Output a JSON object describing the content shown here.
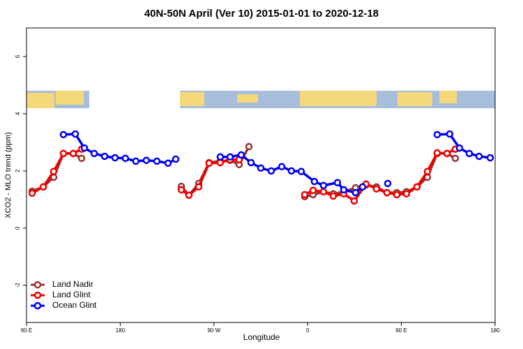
{
  "chart_data": {
    "type": "line",
    "title": "40N-50N April (Ver 10)   2015-01-01 to 2020-12-18",
    "x_label": "Longitude",
    "y_label": "XCO2 - MLO trend (ppm)",
    "xlim": [
      90,
      540
    ],
    "ylim": [
      -3.3,
      7
    ],
    "xticks": [
      {
        "value": 90,
        "label": "90 E"
      },
      180,
      {
        "value": 270,
        "label": "90 W"
      },
      {
        "value": 360,
        "label": "0"
      },
      {
        "value": 450,
        "label": "90 E"
      },
      {
        "value": 540,
        "label": "180"
      }
    ],
    "yticks": [
      -2,
      0,
      2,
      4,
      6
    ],
    "legend": "bottom-left",
    "series": [
      {
        "name": "Land Nadir",
        "color": "#993333",
        "x": [
          95.4,
          106.1,
          116.1,
          125.5,
          134.9,
          142.9,
          null,
          238.7,
          246,
          255.4,
          265.4,
          276.1,
          285.5,
          294.2,
          303.6,
          null,
          357.2,
          365.2,
          375.2,
          384.6,
          394.7,
          406,
          416.1,
          426.1,
          436.2,
          445.6,
          454.9,
          465,
          475,
          484.4,
          493.8,
          501.8
        ],
        "values": [
          1.29,
          1.44,
          1.78,
          2.61,
          2.61,
          2.44,
          null,
          1.46,
          1.15,
          1.56,
          2.29,
          2.34,
          2.37,
          2.22,
          2.85,
          null,
          1.1,
          1.17,
          1.27,
          1.2,
          1.27,
          1.41,
          1.51,
          1.44,
          1.24,
          1.24,
          1.27,
          1.44,
          1.78,
          2.61,
          2.61,
          2.44
        ]
      },
      {
        "name": "Land Glint",
        "color": "#ee0000",
        "x": [
          95.4,
          106.1,
          116.1,
          125.5,
          134.9,
          142.9,
          null,
          238.7,
          246,
          255.4,
          265.4,
          276.1,
          285.5,
          294.2,
          null,
          357.2,
          365.2,
          375.2,
          384.6,
          394.7,
          404.7,
          416.1,
          426.1,
          436.2,
          445.6,
          454.9,
          465,
          475,
          484.4,
          493.8,
          501.8
        ],
        "values": [
          1.22,
          1.44,
          1.98,
          2.61,
          2.61,
          2.76,
          null,
          1.34,
          1.15,
          1.44,
          2.27,
          2.29,
          2.39,
          2.39,
          null,
          1.17,
          1.32,
          1.27,
          1.12,
          1.2,
          0.95,
          1.54,
          1.37,
          1.24,
          1.17,
          1.2,
          1.44,
          1.98,
          2.63,
          2.61,
          2.76
        ]
      },
      {
        "name": "Ocean Glint",
        "color": "#0000ee",
        "x": [
          125.5,
          136.9,
          145.6,
          155,
          165,
          175,
          185,
          195,
          205.1,
          215.2,
          225.9,
          233.3,
          null,
          276.1,
          285.5,
          296.2,
          305.6,
          315,
          325,
          335.1,
          344.4,
          353.8,
          366.5,
          375.2,
          388.6,
          394.7,
          406,
          412.7,
          null,
          436.9,
          null,
          484.4,
          496.4,
          505.8,
          515.2,
          524.6,
          535.3
        ],
        "values": [
          3.27,
          3.29,
          2.8,
          2.61,
          2.51,
          2.46,
          2.44,
          2.34,
          2.37,
          2.34,
          2.27,
          2.41,
          null,
          2.49,
          2.49,
          2.56,
          2.29,
          2.1,
          2.0,
          2.15,
          2.0,
          1.98,
          1.63,
          1.49,
          1.59,
          1.34,
          1.24,
          1.44,
          null,
          1.56,
          null,
          3.27,
          3.29,
          2.8,
          2.61,
          2.51,
          2.46
        ]
      }
    ]
  }
}
